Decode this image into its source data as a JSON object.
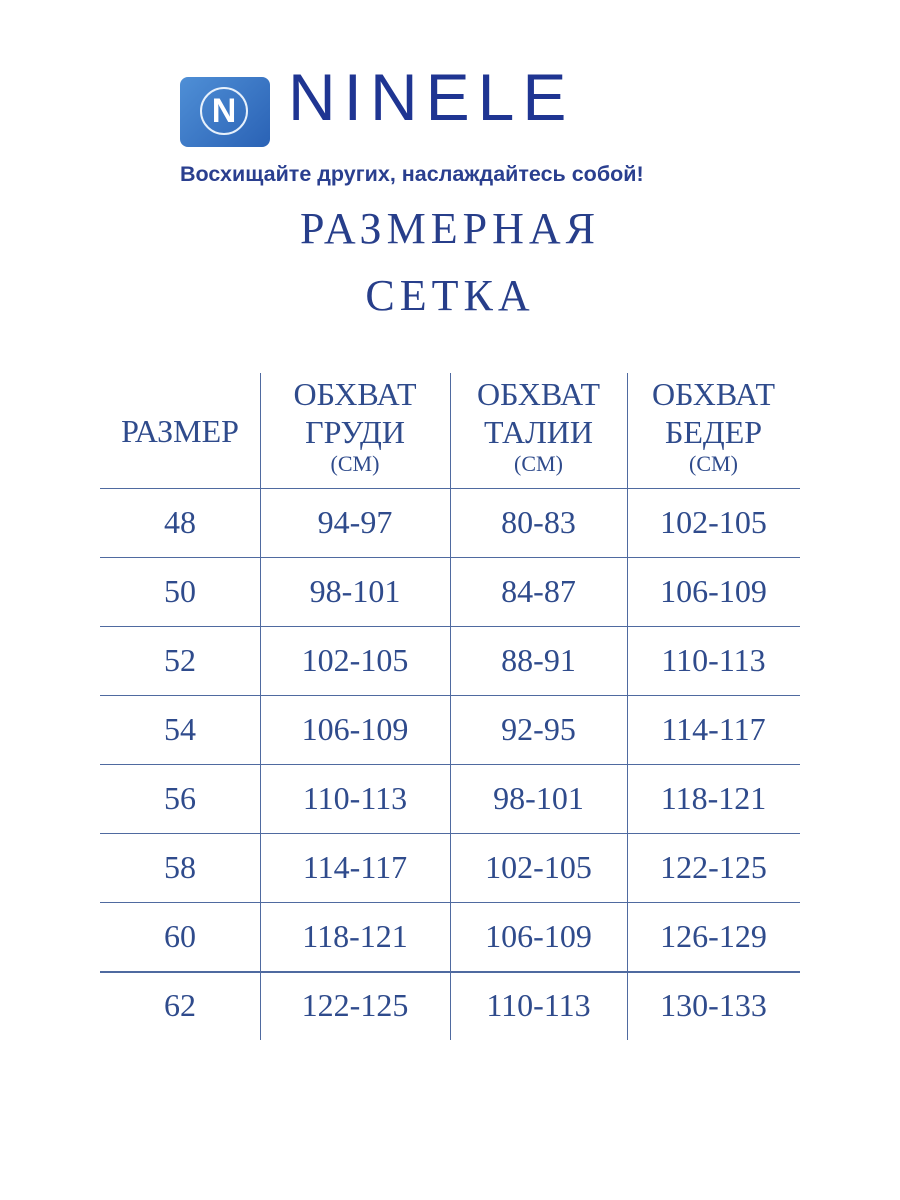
{
  "logo": {
    "brand": "NINELE",
    "badge_letter": "N",
    "tagline": "Восхищайте других, наслаждайтесь собой!"
  },
  "title": {
    "line1": "РАЗМЕРНАЯ",
    "line2": "СЕТКА"
  },
  "table": {
    "headers": [
      {
        "line1": "РАЗМЕР",
        "line2": "",
        "unit": ""
      },
      {
        "line1": "ОБХВАТ",
        "line2": "ГРУДИ",
        "unit": "(СМ)"
      },
      {
        "line1": "ОБХВАТ",
        "line2": "ТАЛИИ",
        "unit": "(СМ)"
      },
      {
        "line1": "ОБХВАТ",
        "line2": "БЕДЕР",
        "unit": "(СМ)"
      }
    ],
    "rows": [
      [
        "48",
        "94-97",
        "80-83",
        "102-105"
      ],
      [
        "50",
        "98-101",
        "84-87",
        "106-109"
      ],
      [
        "52",
        "102-105",
        "88-91",
        "110-113"
      ],
      [
        "54",
        "106-109",
        "92-95",
        "114-117"
      ],
      [
        "56",
        "110-113",
        "98-101",
        "118-121"
      ],
      [
        "58",
        "114-117",
        "102-105",
        "122-125"
      ],
      [
        "60",
        "118-121",
        "106-109",
        "126-129"
      ],
      [
        "62",
        "122-125",
        "110-113",
        "130-133"
      ]
    ]
  },
  "colors": {
    "brand": "#1f3592",
    "text": "#2f4b8c",
    "lines": "#4f6aa0"
  }
}
